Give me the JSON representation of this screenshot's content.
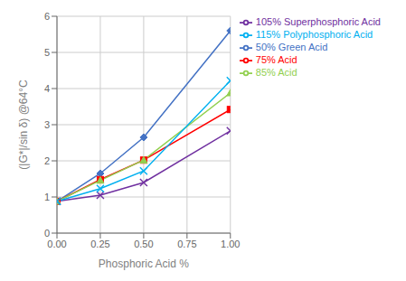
{
  "chart_data": {
    "type": "line",
    "x": [
      0,
      0.25,
      0.5,
      1
    ],
    "series": [
      {
        "name": "50% Green Acid",
        "color": "#4472C4",
        "marker": "diamond",
        "values": [
          0.88,
          1.65,
          2.65,
          5.6
        ]
      },
      {
        "name": "75% Acid",
        "color": "#FF0000",
        "marker": "square",
        "values": [
          0.88,
          1.48,
          2.02,
          3.42
        ]
      },
      {
        "name": "85% Acid",
        "color": "#92D050",
        "marker": "triangle",
        "values": [
          0.88,
          1.46,
          2.02,
          3.88
        ]
      },
      {
        "name": "105% Superphosphoric Acid",
        "color": "#7030A0",
        "marker": "x",
        "values": [
          0.88,
          1.05,
          1.4,
          2.83
        ]
      },
      {
        "name": "115% Polyphosphoric Acid",
        "color": "#00B0F0",
        "marker": "x",
        "values": [
          0.88,
          1.23,
          1.72,
          4.22
        ]
      }
    ],
    "xlabel": "Phosphoric Acid %",
    "ylabel": "(|G*|/sin δ) @64°C",
    "xlim": [
      0.0,
      1.0
    ],
    "ylim": [
      0,
      6
    ],
    "xticks": [
      {
        "value": 0,
        "label": "0.00"
      },
      0.25,
      {
        "value": 0.5,
        "label": "0.50"
      },
      0.75,
      {
        "value": 1,
        "label": "1.00"
      }
    ],
    "yticks": [
      0,
      1,
      2,
      3,
      4,
      5,
      6
    ],
    "grid": true,
    "legend": "right"
  }
}
